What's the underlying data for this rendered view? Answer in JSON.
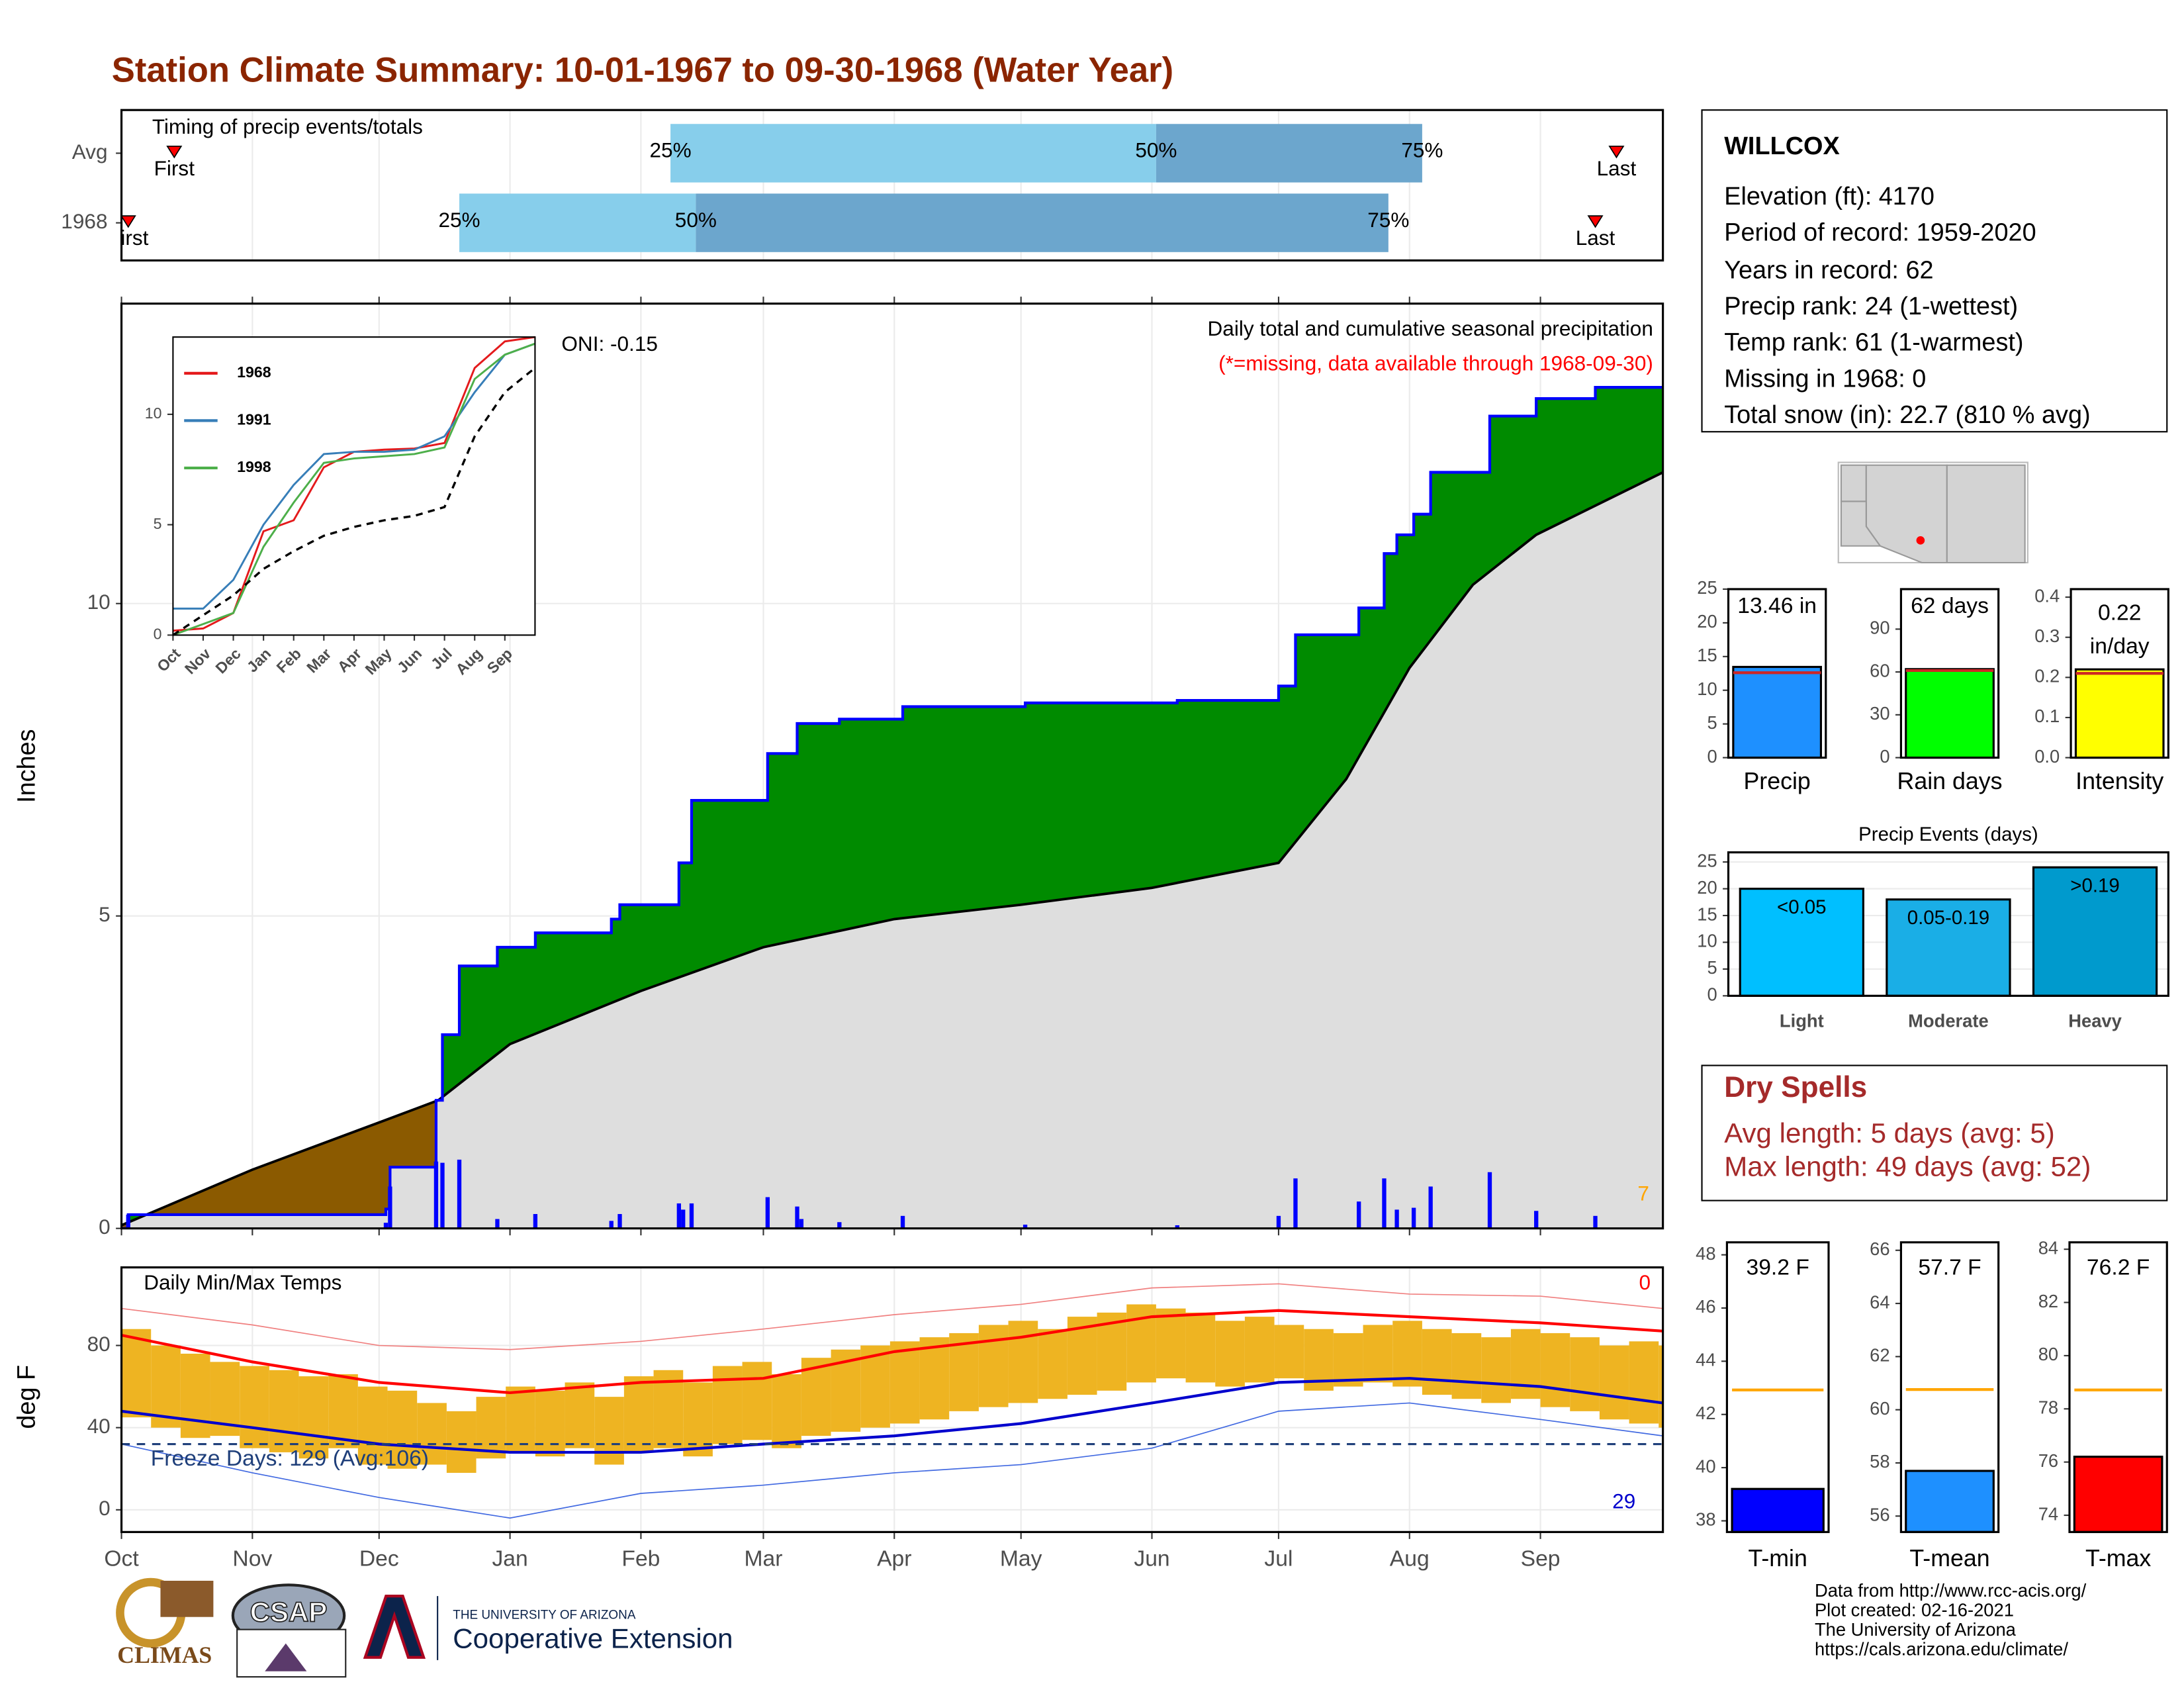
{
  "title": "Station Climate Summary: 10-01-1967 to 09-30-1968 (Water Year)",
  "station": {
    "name": "WILLCOX",
    "lines": [
      "Elevation (ft): 4170",
      "Period of record: 1959-2020",
      "Years in record: 62",
      "Precip rank: 24 (1-wettest)",
      "Temp rank: 61 (1-warmest)",
      "Missing in 1968: 0",
      "Total snow (in): 22.7 (810 % avg)"
    ]
  },
  "dry_spells": {
    "title": "Dry Spells",
    "lines": [
      "Avg length: 5 days (avg: 5)",
      "Max length: 49 days (avg: 52)"
    ]
  },
  "footer": {
    "lines": [
      "Data from http://www.rcc-acis.org/",
      "Plot created: 02-16-2021",
      "The University of Arizona",
      "https://cals.arizona.edu/climate/"
    ],
    "logos": [
      "CLIMAS",
      "CSAP",
      "THE UNIVERSITY OF ARIZONA",
      "Cooperative Extension"
    ]
  },
  "chart_data": [
    {
      "type": "timing",
      "title": "Timing of precip events/totals",
      "xlim": [
        0,
        365
      ],
      "xticks": [
        0,
        31,
        61,
        92,
        123,
        152,
        183,
        213,
        244,
        274,
        305,
        336
      ],
      "labels": {
        "first": "First",
        "last": "Last",
        "p25": "25%",
        "p50": "50%",
        "p75": "75%"
      },
      "colors": [
        "#87ceeb",
        "#6ca6cd",
        "#ff0000"
      ],
      "rows": [
        {
          "name": "Avg",
          "first": 12.5,
          "p25": 130,
          "p50": 245,
          "p75": 308,
          "last": 354
        },
        {
          "name": "1968",
          "first": 1.6,
          "p25": 80,
          "p50": 136,
          "p75": 300,
          "last": 349
        }
      ]
    },
    {
      "type": "cumulative",
      "title": "Daily total and cumulative seasonal precipitation",
      "subtitle": "(*=missing, data available through 1968-09-30)",
      "y_label": "Inches",
      "annotations": [
        "ONI: -0.15",
        "7"
      ],
      "xlim": [
        0,
        365
      ],
      "ylim": [
        0,
        14.8
      ],
      "yticks": [
        0,
        5,
        10
      ],
      "xticks": [
        0,
        31,
        61,
        92,
        123,
        152,
        183,
        213,
        244,
        274,
        305,
        336
      ],
      "grid": true,
      "above_color": "#008b00",
      "below_color": "#8b5a00",
      "base_color": "#dedede",
      "series": [
        {
          "color": "#0000ff",
          "x": [
            0,
            1.6,
            62.6,
            63.6,
            74.5,
            76,
            80,
            89,
            98,
            116,
            118,
            132,
            135,
            153,
            160,
            170,
            185,
            214,
            250,
            274,
            278,
            293,
            299,
            302,
            306,
            310,
            324,
            335,
            349,
            365
          ],
          "values": [
            0,
            0.22,
            0.31,
            0.98,
            2.05,
            3.1,
            4.2,
            4.5,
            4.73,
            4.95,
            5.18,
            5.85,
            6.85,
            7.6,
            8.08,
            8.15,
            8.35,
            8.41,
            8.45,
            8.68,
            9.5,
            9.93,
            10.8,
            11.1,
            11.43,
            12.1,
            13.0,
            13.28,
            13.46,
            13.46
          ]
        },
        {
          "color": "#000000",
          "x": [
            0,
            31,
            62,
            75,
            92,
            123,
            152,
            183,
            213,
            244,
            274,
            290,
            305,
            320,
            335,
            365
          ],
          "values": [
            0.05,
            0.94,
            1.72,
            2.05,
            2.95,
            3.8,
            4.5,
            4.95,
            5.18,
            5.45,
            5.85,
            7.19,
            8.97,
            10.3,
            11.1,
            12.1
          ]
        }
      ],
      "daily": {
        "color": "#0000ff",
        "x": [
          1.6,
          62.6,
          63.6,
          74.5,
          76,
          80,
          89,
          98,
          116,
          118,
          132,
          133,
          135,
          153,
          160,
          161,
          170,
          185,
          214,
          250,
          274,
          278,
          293,
          299,
          302,
          306,
          310,
          324,
          335,
          349
        ],
        "values": [
          0.22,
          0.09,
          0.67,
          1.07,
          1.05,
          1.1,
          0.15,
          0.23,
          0.12,
          0.23,
          0.4,
          0.3,
          0.4,
          0.5,
          0.35,
          0.15,
          0.1,
          0.2,
          0.06,
          0.05,
          0.2,
          0.8,
          0.43,
          0.8,
          0.3,
          0.33,
          0.67,
          0.9,
          0.28,
          0.2
        ]
      }
    },
    {
      "type": "line",
      "xlim": [
        0,
        12
      ],
      "ylim": [
        0,
        13.5
      ],
      "yticks": [
        0,
        5,
        10
      ],
      "xticks": [
        {
          "value": 0,
          "label": "Oct"
        },
        {
          "value": 1,
          "label": "Nov"
        },
        {
          "value": 2,
          "label": "Dec"
        },
        {
          "value": 3,
          "label": "Jan"
        },
        {
          "value": 4,
          "label": "Feb"
        },
        {
          "value": 5,
          "label": "Mar"
        },
        {
          "value": 6,
          "label": "Apr"
        },
        {
          "value": 7,
          "label": "May"
        },
        {
          "value": 8,
          "label": "Jun"
        },
        {
          "value": 9,
          "label": "Jul"
        },
        {
          "value": 10,
          "label": "Aug"
        },
        {
          "value": 11,
          "label": "Sep"
        }
      ],
      "x": [
        0,
        1,
        2,
        3,
        4,
        5,
        6,
        7,
        8,
        9,
        10,
        11,
        12
      ],
      "series": [
        {
          "name": "1968",
          "color": "#e41a1c",
          "values": [
            0.2,
            0.3,
            1.0,
            4.7,
            5.2,
            7.6,
            8.3,
            8.4,
            8.45,
            8.7,
            12.1,
            13.3,
            13.5
          ]
        },
        {
          "name": "1991",
          "color": "#377eb8",
          "values": [
            1.2,
            1.2,
            2.5,
            5.0,
            6.8,
            8.2,
            8.3,
            8.3,
            8.4,
            9.0,
            11.0,
            12.7,
            13.2
          ]
        },
        {
          "name": "1998",
          "color": "#4daf4a",
          "values": [
            0,
            0.5,
            1.0,
            4.0,
            6.0,
            7.8,
            8.0,
            8.1,
            8.2,
            8.5,
            11.6,
            12.7,
            13.2
          ]
        },
        {
          "color": "#000000",
          "dash": true,
          "values": [
            0,
            0.9,
            1.8,
            3.0,
            3.8,
            4.5,
            4.9,
            5.2,
            5.4,
            5.8,
            9.0,
            11.0,
            12.1
          ]
        }
      ]
    },
    {
      "type": "temperature",
      "title": "Daily Min/Max Temps",
      "y_label": "deg F",
      "annotations": [
        "Freeze Days: 129 (Avg:106)",
        "0",
        "29"
      ],
      "xlim": [
        0,
        365
      ],
      "ylim": [
        -10.8,
        118
      ],
      "yticks": [
        0,
        40,
        80
      ],
      "grid": true,
      "xticks": [
        {
          "value": 0,
          "label": "Oct"
        },
        {
          "value": 31,
          "label": "Nov"
        },
        {
          "value": 61,
          "label": "Dec"
        },
        {
          "value": 92,
          "label": "Jan"
        },
        {
          "value": 123,
          "label": "Feb"
        },
        {
          "value": 152,
          "label": "Mar"
        },
        {
          "value": 183,
          "label": "Apr"
        },
        {
          "value": 213,
          "label": "May"
        },
        {
          "value": 244,
          "label": "Jun"
        },
        {
          "value": 274,
          "label": "Jul"
        },
        {
          "value": 305,
          "label": "Aug"
        },
        {
          "value": 336,
          "label": "Sep"
        }
      ],
      "range_color": "#eeb422",
      "max_color": "#ff0000",
      "min_color": "#0000cd",
      "record_max_color": "#f08080",
      "record_min_color": "#4169e1",
      "freeze_color": "#1f3f7a",
      "freeze": 32,
      "x": [
        0,
        7,
        14,
        21,
        28,
        35,
        42,
        49,
        56,
        63,
        70,
        77,
        84,
        91,
        98,
        105,
        112,
        119,
        126,
        133,
        140,
        147,
        154,
        161,
        168,
        175,
        182,
        189,
        196,
        203,
        210,
        217,
        224,
        231,
        238,
        245,
        252,
        259,
        266,
        273,
        280,
        287,
        294,
        301,
        308,
        315,
        322,
        329,
        336,
        343,
        350,
        357,
        364
      ],
      "max": [
        88,
        80,
        76,
        72,
        70,
        68,
        65,
        66,
        60,
        58,
        52,
        48,
        55,
        60,
        58,
        62,
        55,
        65,
        68,
        62,
        70,
        72,
        66,
        74,
        78,
        80,
        82,
        84,
        86,
        90,
        92,
        88,
        94,
        96,
        100,
        98,
        96,
        92,
        94,
        90,
        88,
        86,
        90,
        92,
        88,
        86,
        84,
        88,
        86,
        84,
        80,
        82,
        80
      ],
      "min": [
        45,
        40,
        35,
        36,
        30,
        28,
        25,
        30,
        22,
        20,
        22,
        18,
        25,
        28,
        26,
        30,
        22,
        28,
        30,
        26,
        32,
        34,
        30,
        36,
        38,
        40,
        42,
        44,
        48,
        50,
        52,
        54,
        56,
        58,
        62,
        64,
        62,
        60,
        62,
        64,
        58,
        60,
        62,
        60,
        56,
        54,
        52,
        54,
        50,
        48,
        44,
        42,
        40
      ],
      "normal_x": [
        0,
        31,
        61,
        92,
        123,
        152,
        183,
        213,
        244,
        274,
        305,
        336,
        365
      ],
      "normal_max": [
        85,
        72,
        62,
        57,
        62,
        64,
        77,
        84,
        94,
        97,
        94,
        91,
        87
      ],
      "normal_min": [
        48,
        40,
        32,
        28,
        28,
        32,
        36,
        42,
        52,
        62,
        64,
        60,
        52
      ],
      "record_max": [
        98,
        90,
        80,
        78,
        82,
        88,
        95,
        100,
        108,
        110,
        105,
        104,
        98
      ],
      "record_min": [
        32,
        18,
        6,
        -4,
        8,
        12,
        18,
        22,
        30,
        48,
        52,
        44,
        36
      ]
    },
    {
      "type": "bar",
      "categories": [
        "Precip"
      ],
      "values": [
        13.46
      ],
      "value_labels": [
        "13.46 in"
      ],
      "average": 12.6,
      "color": "#1e90ff",
      "average_color": "#cd2626",
      "ylim": [
        0,
        25
      ],
      "yticks": [
        0,
        5,
        10,
        15,
        20,
        25
      ]
    },
    {
      "type": "bar",
      "categories": [
        "Rain days"
      ],
      "values": [
        62
      ],
      "value_labels": [
        "62 days"
      ],
      "average": 61,
      "color": "#00ff00",
      "average_color": "#cd2626",
      "ylim": [
        0,
        118
      ],
      "yticks": [
        0,
        30,
        60,
        90
      ]
    },
    {
      "type": "bar",
      "categories": [
        "Intensity"
      ],
      "values": [
        0.22
      ],
      "value_labels": [
        "0.22"
      ],
      "unit": "in/day",
      "average": 0.21,
      "color": "#ffff00",
      "average_color": "#cd2626",
      "ylim": [
        0,
        0.42
      ],
      "yticks": [
        {
          "value": 0,
          "label": "0.0"
        },
        0.1,
        0.2,
        0.3,
        0.4
      ]
    },
    {
      "type": "bar",
      "title": "Precip Events (days)",
      "categories": [
        "Light",
        "Moderate",
        "Heavy"
      ],
      "values": [
        20,
        18,
        24
      ],
      "bar_labels": [
        "<0.05",
        "0.05-0.19",
        ">0.19"
      ],
      "colors": [
        "#00bfff",
        "#1aaee6",
        "#009acd"
      ],
      "ylim": [
        0,
        26.8
      ],
      "yticks": [
        0,
        5,
        10,
        15,
        20,
        25
      ],
      "grid": true
    },
    {
      "type": "bar",
      "categories": [
        "T-min"
      ],
      "values": [
        39.2
      ],
      "value_labels": [
        "39.2 F"
      ],
      "average": 42.92,
      "color": "#0000ff",
      "average_color": "#ffa500",
      "ylim": [
        37.58,
        48.47
      ],
      "yticks": [
        38,
        40,
        42,
        44,
        46,
        48
      ]
    },
    {
      "type": "bar",
      "categories": [
        "T-mean"
      ],
      "values": [
        57.7
      ],
      "value_labels": [
        "57.7 F"
      ],
      "average": 60.76,
      "color": "#1e90ff",
      "average_color": "#ffa500",
      "ylim": [
        55.4,
        66.3
      ],
      "yticks": [
        56,
        58,
        60,
        62,
        64,
        66
      ]
    },
    {
      "type": "bar",
      "categories": [
        "T-max"
      ],
      "values": [
        76.2
      ],
      "value_labels": [
        "76.2 F"
      ],
      "average": 78.71,
      "color": "#ff0000",
      "average_color": "#ffa500",
      "ylim": [
        73.37,
        84.26
      ],
      "yticks": [
        74,
        76,
        78,
        80,
        82,
        84
      ]
    }
  ]
}
